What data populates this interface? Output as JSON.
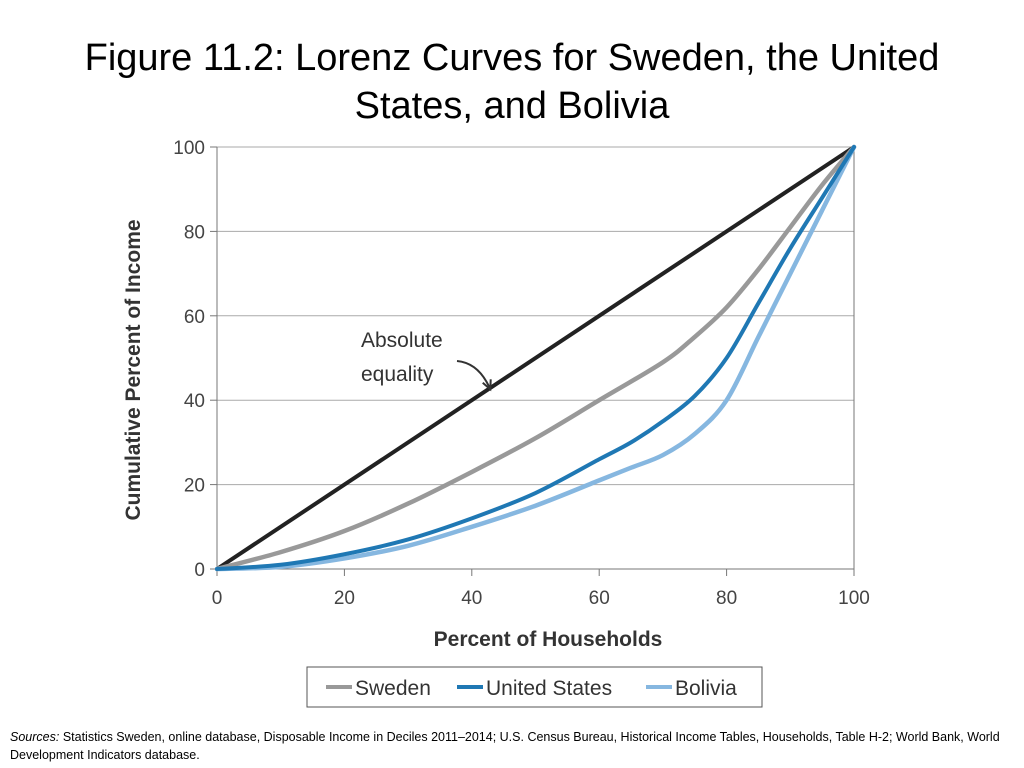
{
  "title": "Figure 11.2: Lorenz Curves for Sweden, the United States, and Bolivia",
  "sources": {
    "label": "Sources:",
    "text": " Statistics Sweden, online database, Disposable Income in Deciles 2011–2014; U.S. Census Bureau, Historical Income Tables, Households, Table H-2; World Bank, World Development Indicators database."
  },
  "colors": {
    "equality": "#222222",
    "sweden": "#999999",
    "united_states": "#1f78b4",
    "bolivia": "#86b7e0",
    "grid": "#aaaaaa",
    "axis_text": "#444444"
  },
  "chart_data": {
    "type": "line",
    "xlabel": "Percent of Households",
    "ylabel": "Cumulative Percent of Income",
    "xlim": [
      0,
      100
    ],
    "ylim": [
      0,
      100
    ],
    "xticks": [
      0,
      20,
      40,
      60,
      80,
      100
    ],
    "yticks": [
      0,
      20,
      40,
      60,
      80,
      100
    ],
    "grid": "horizontal",
    "legend_position": "bottom",
    "annotation": {
      "lines": [
        "Absolute",
        "equality"
      ],
      "points_to": [
        44,
        44
      ]
    },
    "series": [
      {
        "key": "equality",
        "x": [
          0,
          100
        ],
        "y": [
          0,
          100
        ]
      },
      {
        "key": "sweden",
        "name": "Sweden",
        "x": [
          0,
          10,
          20,
          30,
          40,
          50,
          60,
          70,
          75,
          80,
          85,
          90,
          95,
          100
        ],
        "y": [
          0,
          4,
          9,
          15.5,
          23,
          31,
          40,
          49,
          55,
          62,
          71,
          81,
          91,
          100
        ]
      },
      {
        "key": "united_states",
        "name": "United States",
        "x": [
          0,
          10,
          20,
          30,
          40,
          50,
          60,
          65,
          70,
          75,
          80,
          85,
          90,
          95,
          100
        ],
        "y": [
          0,
          1,
          3.5,
          7,
          12,
          18,
          26,
          30,
          35,
          41,
          50,
          63,
          76,
          88,
          100
        ]
      },
      {
        "key": "bolivia",
        "name": "Bolivia",
        "x": [
          0,
          10,
          20,
          30,
          40,
          50,
          60,
          65,
          70,
          75,
          80,
          85,
          90,
          95,
          100
        ],
        "y": [
          0,
          0.5,
          2.5,
          5.5,
          10,
          15,
          21,
          24,
          27,
          32,
          40,
          55,
          70,
          85,
          100
        ]
      }
    ]
  }
}
